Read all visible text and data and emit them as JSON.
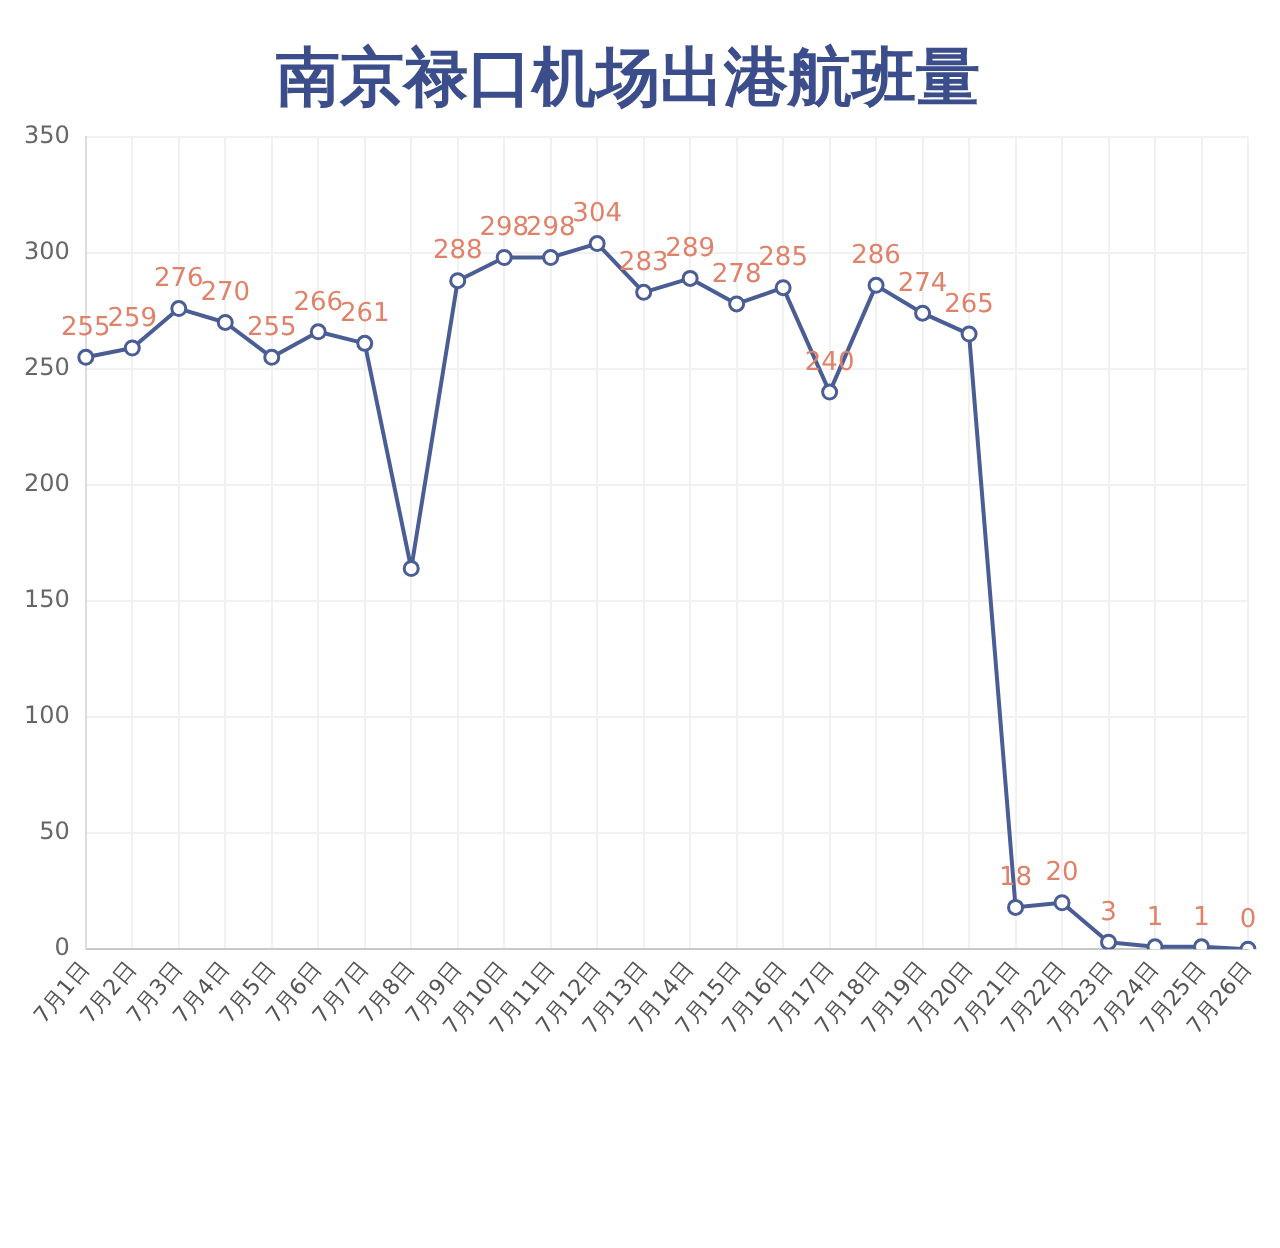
{
  "chart_data": {
    "type": "line",
    "title": "南京禄口机场出港航班量",
    "categories": [
      "7月1日",
      "7月2日",
      "7月3日",
      "7月4日",
      "7月5日",
      "7月6日",
      "7月7日",
      "7月8日",
      "7月9日",
      "7月10日",
      "7月11日",
      "7月12日",
      "7月13日",
      "7月14日",
      "7月15日",
      "7月16日",
      "7月17日",
      "7月18日",
      "7月19日",
      "7月20日",
      "7月21日",
      "7月22日",
      "7月23日",
      "7月24日",
      "7月25日",
      "7月26日"
    ],
    "series": [
      {
        "color": "#4a5d94",
        "values": [
          255,
          259,
          276,
          270,
          255,
          266,
          261,
          164,
          288,
          298,
          298,
          304,
          283,
          289,
          278,
          285,
          240,
          286,
          274,
          265,
          18,
          20,
          3,
          1,
          1,
          0
        ],
        "value_labels": [
          "255",
          "259",
          "276",
          "270",
          "255",
          "266",
          "261",
          null,
          "288",
          "298",
          "298",
          "304",
          "283",
          "289",
          "278",
          "285",
          "240",
          "286",
          "274",
          "265",
          "18",
          "20",
          "3",
          "1",
          "1",
          "0"
        ]
      }
    ],
    "ylim": [
      0,
      350
    ],
    "yticks": [
      0,
      50,
      100,
      150,
      200,
      250,
      300,
      350
    ],
    "grid": true,
    "marker": "circle"
  }
}
